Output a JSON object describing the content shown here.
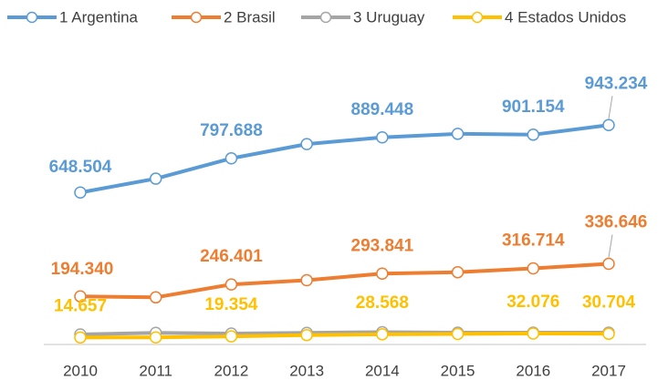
{
  "chart_data": {
    "type": "line",
    "categories": [
      "2010",
      "2011",
      "2012",
      "2013",
      "2014",
      "2015",
      "2016",
      "2017"
    ],
    "ylim": [
      0,
      1000
    ],
    "legend": "top",
    "series": [
      {
        "name": "1 Argentina",
        "color": "#5b9bd5",
        "values": [
          648.504,
          709,
          797.688,
          860,
          889.448,
          905,
          901.154,
          943.234
        ],
        "value_labels": [
          "648.504",
          null,
          "797.688",
          null,
          "889.448",
          null,
          "901.154",
          "943.234"
        ]
      },
      {
        "name": "2 Brasil",
        "color": "#ed7d31",
        "values": [
          194.34,
          190,
          246.401,
          265,
          293.841,
          300,
          316.714,
          336.646
        ],
        "value_labels": [
          "194.340",
          null,
          "246.401",
          null,
          "293.841",
          null,
          "316.714",
          "336.646"
        ]
      },
      {
        "name": "3 Uruguay",
        "color": "#a5a5a5",
        "values": [
          28,
          35,
          32,
          35,
          38,
          36,
          36,
          36
        ]
      },
      {
        "name": "4 Estados Unidos",
        "color": "#ffc000",
        "values": [
          14.657,
          15,
          19.354,
          25,
          28.568,
          30,
          32.076,
          30.704
        ],
        "value_labels": [
          "14.657",
          null,
          "19.354",
          null,
          "28.568",
          null,
          "32.076",
          "30.704"
        ]
      }
    ]
  }
}
